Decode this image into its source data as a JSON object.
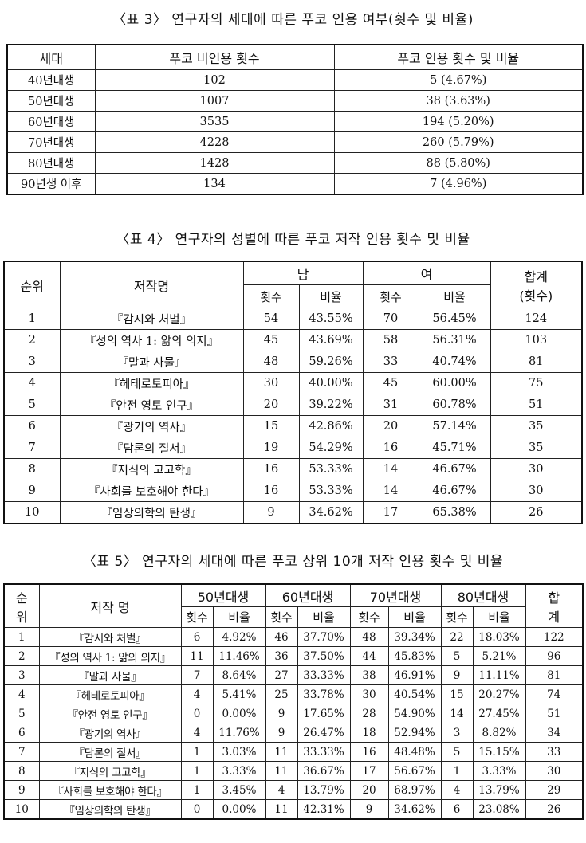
{
  "table3": {
    "caption": "〈표 3〉 연구자의 세대에 따른 푸코 인용 여부(횟수 및 비율)",
    "headers": [
      "세대",
      "푸코 비인용 횟수",
      "푸코 인용 횟수 및 비율"
    ],
    "rows": [
      [
        "40년대생",
        "102",
        "5 (4.67%)"
      ],
      [
        "50년대생",
        "1007",
        "38 (3.63%)"
      ],
      [
        "60년대생",
        "3535",
        "194 (5.20%)"
      ],
      [
        "70년대생",
        "4228",
        "260 (5.79%)"
      ],
      [
        "80년대생",
        "1428",
        "88 (5.80%)"
      ],
      [
        "90년생 이후",
        "134",
        "7 (4.96%)"
      ]
    ]
  },
  "table4": {
    "caption": "〈표 4〉 연구자의 성별에 따른 푸코 저작 인용 횟수 및 비율",
    "headers": {
      "rank": "순위",
      "title": "저작명",
      "male": "남",
      "female": "여",
      "total_line1": "합계",
      "total_line2": "(횟수)",
      "count": "횟수",
      "ratio": "비율"
    },
    "rows": [
      [
        "1",
        "『감시와 처벌』",
        "54",
        "43.55%",
        "70",
        "56.45%",
        "124"
      ],
      [
        "2",
        "『성의 역사 1: 앎의 의지』",
        "45",
        "43.69%",
        "58",
        "56.31%",
        "103"
      ],
      [
        "3",
        "『말과 사물』",
        "48",
        "59.26%",
        "33",
        "40.74%",
        "81"
      ],
      [
        "4",
        "『헤테로토피아』",
        "30",
        "40.00%",
        "45",
        "60.00%",
        "75"
      ],
      [
        "5",
        "『안전 영토 인구』",
        "20",
        "39.22%",
        "31",
        "60.78%",
        "51"
      ],
      [
        "6",
        "『광기의 역사』",
        "15",
        "42.86%",
        "20",
        "57.14%",
        "35"
      ],
      [
        "7",
        "『담론의 질서』",
        "19",
        "54.29%",
        "16",
        "45.71%",
        "35"
      ],
      [
        "8",
        "『지식의 고고학』",
        "16",
        "53.33%",
        "14",
        "46.67%",
        "30"
      ],
      [
        "9",
        "『사회를 보호해야 한다』",
        "16",
        "53.33%",
        "14",
        "46.67%",
        "30"
      ],
      [
        "10",
        "『임상의학의 탄생』",
        "9",
        "34.62%",
        "17",
        "65.38%",
        "26"
      ]
    ]
  },
  "table5": {
    "caption": "〈표 5〉 연구자의 세대에 따른 푸코 상위 10개 저작 인용 횟수 및 비율",
    "headers": {
      "rank_line1": "순",
      "rank_line2": "위",
      "title": "저작 명",
      "gen50": "50년대생",
      "gen60": "60년대생",
      "gen70": "70년대생",
      "gen80": "80년대생",
      "total_line1": "합",
      "total_line2": "계",
      "count": "횟수",
      "ratio": "비율"
    },
    "rows": [
      [
        "1",
        "『감시와 처벌』",
        "6",
        "4.92%",
        "46",
        "37.70%",
        "48",
        "39.34%",
        "22",
        "18.03%",
        "122"
      ],
      [
        "2",
        "『성의 역사 1: 앎의 의지』",
        "11",
        "11.46%",
        "36",
        "37.50%",
        "44",
        "45.83%",
        "5",
        "5.21%",
        "96"
      ],
      [
        "3",
        "『말과 사물』",
        "7",
        "8.64%",
        "27",
        "33.33%",
        "38",
        "46.91%",
        "9",
        "11.11%",
        "81"
      ],
      [
        "4",
        "『헤테로토피아』",
        "4",
        "5.41%",
        "25",
        "33.78%",
        "30",
        "40.54%",
        "15",
        "20.27%",
        "74"
      ],
      [
        "5",
        "『안전 영토 인구』",
        "0",
        "0.00%",
        "9",
        "17.65%",
        "28",
        "54.90%",
        "14",
        "27.45%",
        "51"
      ],
      [
        "6",
        "『광기의 역사』",
        "4",
        "11.76%",
        "9",
        "26.47%",
        "18",
        "52.94%",
        "3",
        "8.82%",
        "34"
      ],
      [
        "7",
        "『담론의 질서』",
        "1",
        "3.03%",
        "11",
        "33.33%",
        "16",
        "48.48%",
        "5",
        "15.15%",
        "33"
      ],
      [
        "8",
        "『지식의 고고학』",
        "1",
        "3.33%",
        "11",
        "36.67%",
        "17",
        "56.67%",
        "1",
        "3.33%",
        "30"
      ],
      [
        "9",
        "『사회를 보호해야 한다』",
        "1",
        "3.45%",
        "4",
        "13.79%",
        "20",
        "68.97%",
        "4",
        "13.79%",
        "29"
      ],
      [
        "10",
        "『임상의학의 탄생』",
        "0",
        "0.00%",
        "11",
        "42.31%",
        "9",
        "34.62%",
        "6",
        "23.08%",
        "26"
      ]
    ]
  }
}
